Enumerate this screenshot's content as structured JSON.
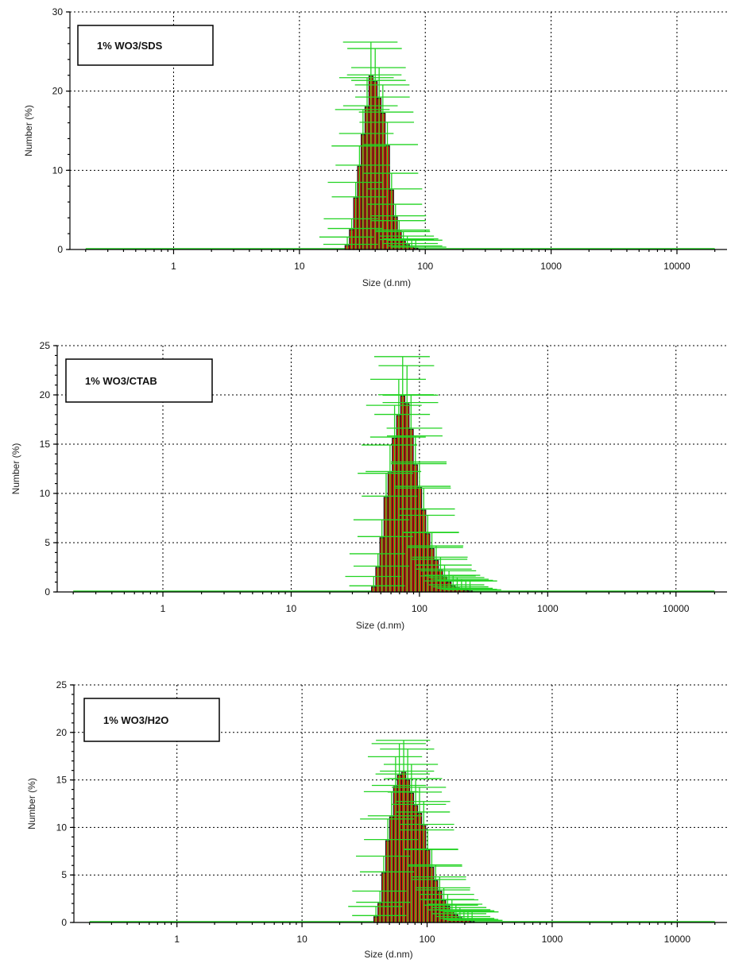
{
  "chart_data": [
    {
      "type": "bar",
      "title": "",
      "legend_entry": "1% WO3/SDS",
      "xlabel": "Size (d.nm)",
      "ylabel": "Number (%)",
      "x_scale": "log",
      "xlim": [
        0.15,
        25000
      ],
      "ylim": [
        0,
        30
      ],
      "x_ticks": [
        "1",
        "10",
        "100",
        "1000",
        "10000"
      ],
      "y_ticks": [
        "0",
        "10",
        "20",
        "30"
      ],
      "grid": true,
      "legend_position": "top-left",
      "bar_color": "#e81c0c",
      "error_color": "#22d322",
      "bins": [
        {
          "x": 24,
          "y": 0.5
        },
        {
          "x": 26,
          "y": 2.5
        },
        {
          "x": 28,
          "y": 6.5
        },
        {
          "x": 30,
          "y": 10.5
        },
        {
          "x": 32,
          "y": 14.5
        },
        {
          "x": 34.5,
          "y": 18
        },
        {
          "x": 37,
          "y": 21.9
        },
        {
          "x": 40,
          "y": 21.2
        },
        {
          "x": 43,
          "y": 19.1
        },
        {
          "x": 46,
          "y": 17.2
        },
        {
          "x": 50,
          "y": 13.1
        },
        {
          "x": 54,
          "y": 7.5
        },
        {
          "x": 58,
          "y": 4.1
        },
        {
          "x": 62,
          "y": 2.3
        },
        {
          "x": 67,
          "y": 1.1
        },
        {
          "x": 72,
          "y": 0.6
        },
        {
          "x": 78,
          "y": 0.3
        },
        {
          "x": 84,
          "y": 0.15
        }
      ]
    },
    {
      "type": "bar",
      "title": "",
      "legend_entry": "1% WO3/CTAB",
      "xlabel": "Size (d.nm)",
      "ylabel": "Number (%)",
      "x_scale": "log",
      "xlim": [
        0.15,
        25000
      ],
      "ylim": [
        0,
        25
      ],
      "x_ticks": [
        "1",
        "10",
        "100",
        "1000",
        "10000"
      ],
      "y_ticks": [
        "0",
        "5",
        "10",
        "15",
        "20",
        "25"
      ],
      "grid": true,
      "legend_position": "top-left",
      "bar_color": "#e81c0c",
      "error_color": "#22d322",
      "bins": [
        {
          "x": 44,
          "y": 0.5
        },
        {
          "x": 47.5,
          "y": 2.5
        },
        {
          "x": 51,
          "y": 5.5
        },
        {
          "x": 55,
          "y": 9.6
        },
        {
          "x": 59,
          "y": 12.1
        },
        {
          "x": 64,
          "y": 15.6
        },
        {
          "x": 69,
          "y": 17.9
        },
        {
          "x": 74,
          "y": 19.9
        },
        {
          "x": 80,
          "y": 19.1
        },
        {
          "x": 86,
          "y": 16.5
        },
        {
          "x": 93,
          "y": 12.9
        },
        {
          "x": 100,
          "y": 10.6
        },
        {
          "x": 108,
          "y": 8.3
        },
        {
          "x": 116,
          "y": 5.9
        },
        {
          "x": 125,
          "y": 4.4
        },
        {
          "x": 135,
          "y": 3.2
        },
        {
          "x": 146,
          "y": 2.2
        },
        {
          "x": 157,
          "y": 1.5
        },
        {
          "x": 170,
          "y": 1.0
        },
        {
          "x": 183,
          "y": 0.6
        },
        {
          "x": 197,
          "y": 0.4
        },
        {
          "x": 213,
          "y": 0.25
        },
        {
          "x": 230,
          "y": 0.15
        },
        {
          "x": 248,
          "y": 0.1
        }
      ]
    },
    {
      "type": "bar",
      "title": "",
      "legend_entry": "1% WO3/H2O",
      "xlabel": "Size (d.nm)",
      "ylabel": "Number (%)",
      "x_scale": "log",
      "xlim": [
        0.15,
        25000
      ],
      "ylim": [
        0,
        25
      ],
      "x_ticks": [
        "1",
        "10",
        "100",
        "1000",
        "10000"
      ],
      "y_ticks": [
        "0",
        "5",
        "10",
        "15",
        "20",
        "25"
      ],
      "grid": true,
      "legend_position": "top-left",
      "bar_color": "#e81c0c",
      "error_color": "#22d322",
      "bins": [
        {
          "x": 39,
          "y": 0.6
        },
        {
          "x": 42,
          "y": 2.0
        },
        {
          "x": 45,
          "y": 5.2
        },
        {
          "x": 48.5,
          "y": 8.6
        },
        {
          "x": 52,
          "y": 11.1
        },
        {
          "x": 56,
          "y": 14.3
        },
        {
          "x": 60,
          "y": 15.5
        },
        {
          "x": 65,
          "y": 15.8
        },
        {
          "x": 70,
          "y": 15.0
        },
        {
          "x": 75,
          "y": 13.6
        },
        {
          "x": 81,
          "y": 12.3
        },
        {
          "x": 87,
          "y": 11.5
        },
        {
          "x": 94,
          "y": 10.2
        },
        {
          "x": 101,
          "y": 7.6
        },
        {
          "x": 109,
          "y": 5.8
        },
        {
          "x": 117,
          "y": 4.4
        },
        {
          "x": 126,
          "y": 3.3
        },
        {
          "x": 136,
          "y": 2.3
        },
        {
          "x": 146,
          "y": 1.7
        },
        {
          "x": 158,
          "y": 1.2
        },
        {
          "x": 170,
          "y": 0.8
        },
        {
          "x": 183,
          "y": 0.5
        },
        {
          "x": 197,
          "y": 0.3
        },
        {
          "x": 212,
          "y": 0.2
        },
        {
          "x": 229,
          "y": 0.1
        }
      ]
    }
  ]
}
